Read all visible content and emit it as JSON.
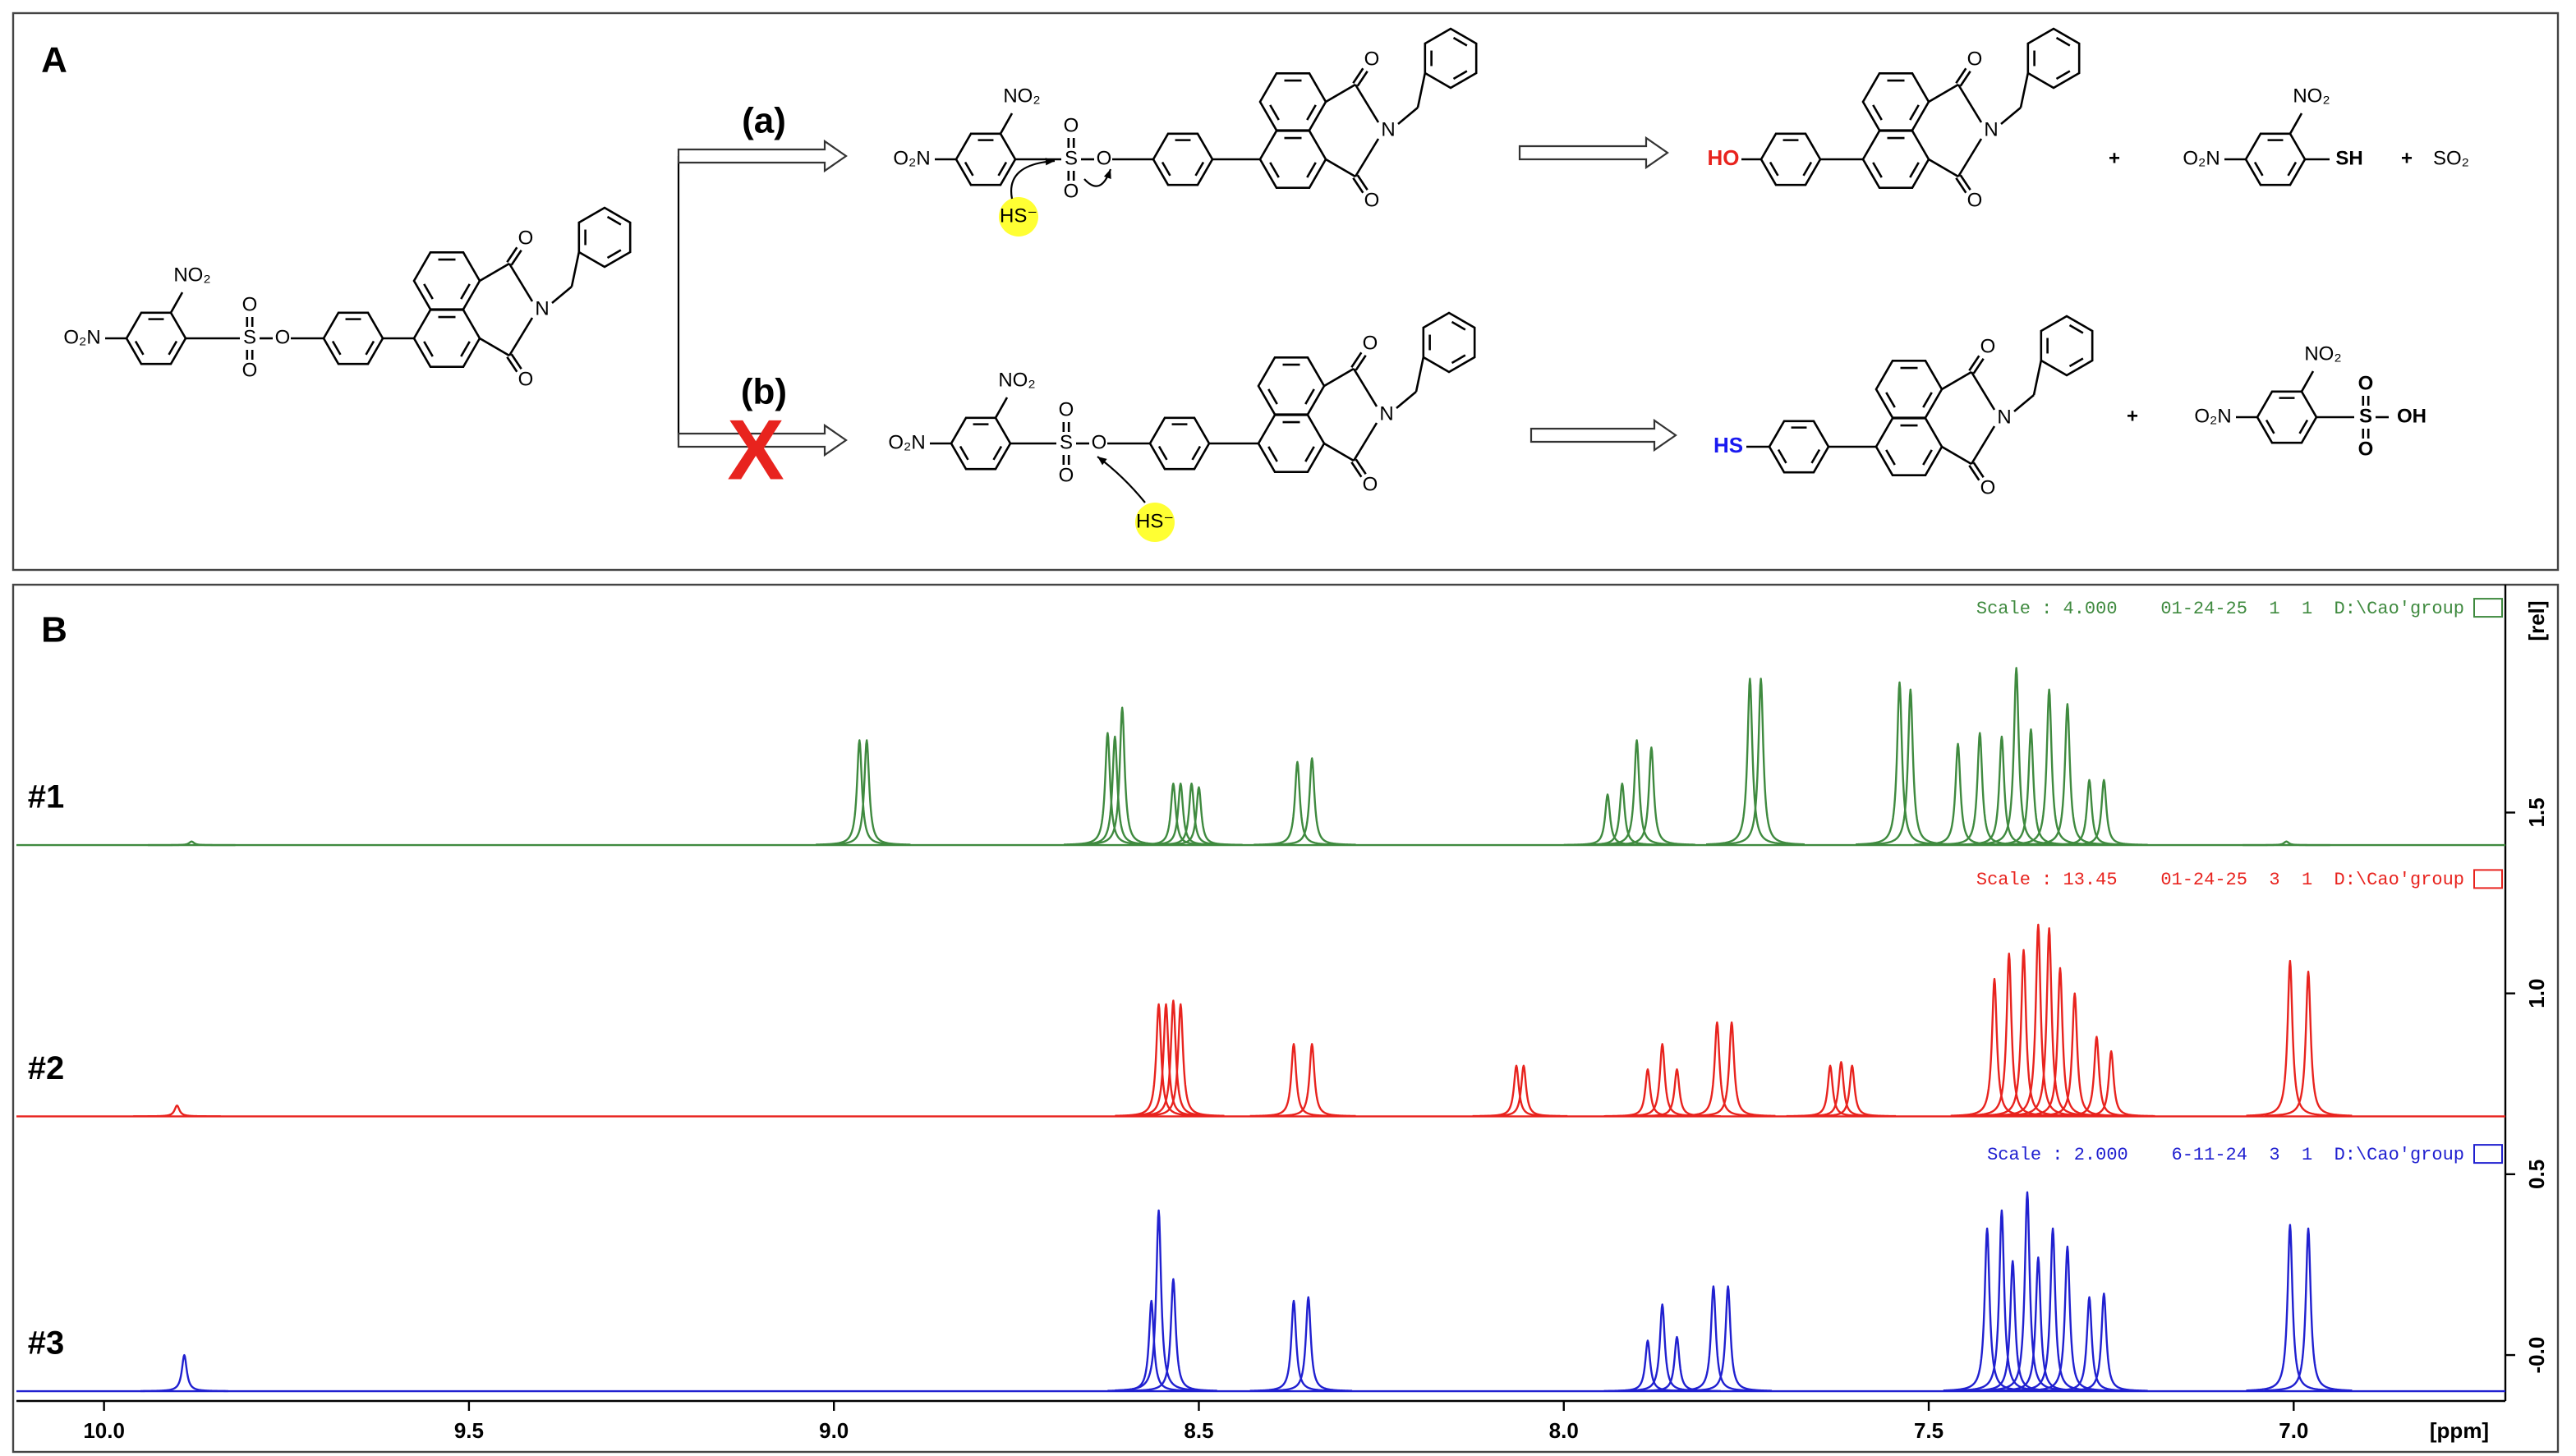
{
  "panel_a": {
    "labels": [
      "A",
      "(a)",
      "(b)",
      "X",
      "O₂N",
      "NO₂",
      "S",
      "O",
      "O",
      "O",
      "O",
      "N",
      "O",
      "O₂N",
      "NO₂",
      "S",
      "O",
      "O",
      "O",
      "HS⁻",
      "O",
      "N",
      "O",
      "HO",
      "O",
      "N",
      "O",
      "+",
      "O₂N",
      "NO₂",
      "SH",
      "+",
      "SO₂",
      "O₂N",
      "NO₂",
      "S",
      "O",
      "O",
      "O",
      "HS⁻",
      "O",
      "N",
      "O",
      "HS",
      "O",
      "N",
      "O",
      "+",
      "O₂N",
      "NO₂",
      "S",
      "O",
      "O",
      "OH"
    ]
  },
  "chart_data": {
    "type": "spectrum",
    "panel_label": "B",
    "x_label": "[ppm]",
    "y_label": "[rel]",
    "xlim": [
      10.12,
      6.71
    ],
    "ylim": [
      -0.127,
      2.13
    ],
    "xticks": [
      {
        "value": 10,
        "label": "10.0"
      },
      9.5,
      {
        "value": 9,
        "label": "9.0"
      },
      8.5,
      {
        "value": 8,
        "label": "8.0"
      },
      7.5,
      {
        "value": 7,
        "label": "7.0"
      }
    ],
    "yticks": [
      {
        "value": 0,
        "label": "-0.0"
      },
      0.5,
      {
        "value": 1,
        "label": "1.0"
      },
      1.5
    ],
    "series": [
      {
        "name": "#1",
        "color": "#3f8a3f",
        "header": "Scale : 4.000    01-24-25  1  1  D:\\Cao'group",
        "baseline": 1.41,
        "x": [
          9.88,
          8.965,
          8.955,
          8.625,
          8.615,
          8.605,
          8.535,
          8.525,
          8.51,
          8.5,
          8.365,
          8.345,
          7.94,
          7.92,
          7.9,
          7.88,
          7.745,
          7.73,
          7.54,
          7.525,
          7.46,
          7.43,
          7.4,
          7.38,
          7.36,
          7.335,
          7.31,
          7.28,
          7.26,
          7.01
        ],
        "values": [
          1.42,
          1.7,
          1.7,
          1.72,
          1.71,
          1.79,
          1.58,
          1.58,
          1.58,
          1.57,
          1.64,
          1.65,
          1.55,
          1.58,
          1.7,
          1.68,
          1.87,
          1.87,
          1.86,
          1.84,
          1.69,
          1.72,
          1.71,
          1.9,
          1.73,
          1.84,
          1.8,
          1.59,
          1.59,
          1.42
        ]
      },
      {
        "name": "#2",
        "color": "#e8231e",
        "header": "Scale : 13.45    01-24-25  3  1  D:\\Cao'group",
        "baseline": 0.66,
        "x": [
          9.9,
          8.555,
          8.545,
          8.535,
          8.525,
          8.37,
          8.345,
          8.065,
          8.055,
          7.885,
          7.865,
          7.845,
          7.79,
          7.77,
          7.635,
          7.62,
          7.605,
          7.41,
          7.39,
          7.37,
          7.35,
          7.335,
          7.32,
          7.3,
          7.27,
          7.25,
          7.005,
          6.98
        ],
        "values": [
          0.69,
          0.97,
          0.97,
          0.98,
          0.97,
          0.86,
          0.86,
          0.8,
          0.8,
          0.79,
          0.86,
          0.79,
          0.92,
          0.92,
          0.8,
          0.81,
          0.8,
          1.04,
          1.11,
          1.12,
          1.19,
          1.18,
          1.07,
          1.0,
          0.88,
          0.84,
          1.09,
          1.06
        ]
      },
      {
        "name": "#3",
        "color": "#2020d0",
        "header": "Scale : 2.000    6-11-24  3  1  D:\\Cao'group",
        "baseline": -0.1,
        "x": [
          9.89,
          8.565,
          8.555,
          8.535,
          8.37,
          8.35,
          7.885,
          7.865,
          7.845,
          7.795,
          7.775,
          7.42,
          7.4,
          7.385,
          7.365,
          7.35,
          7.33,
          7.31,
          7.28,
          7.26,
          7.005,
          6.98
        ],
        "values": [
          0.0,
          0.15,
          0.4,
          0.21,
          0.15,
          0.16,
          0.04,
          0.14,
          0.05,
          0.19,
          0.19,
          0.35,
          0.4,
          0.26,
          0.45,
          0.27,
          0.35,
          0.3,
          0.16,
          0.17,
          0.36,
          0.35
        ]
      }
    ]
  }
}
